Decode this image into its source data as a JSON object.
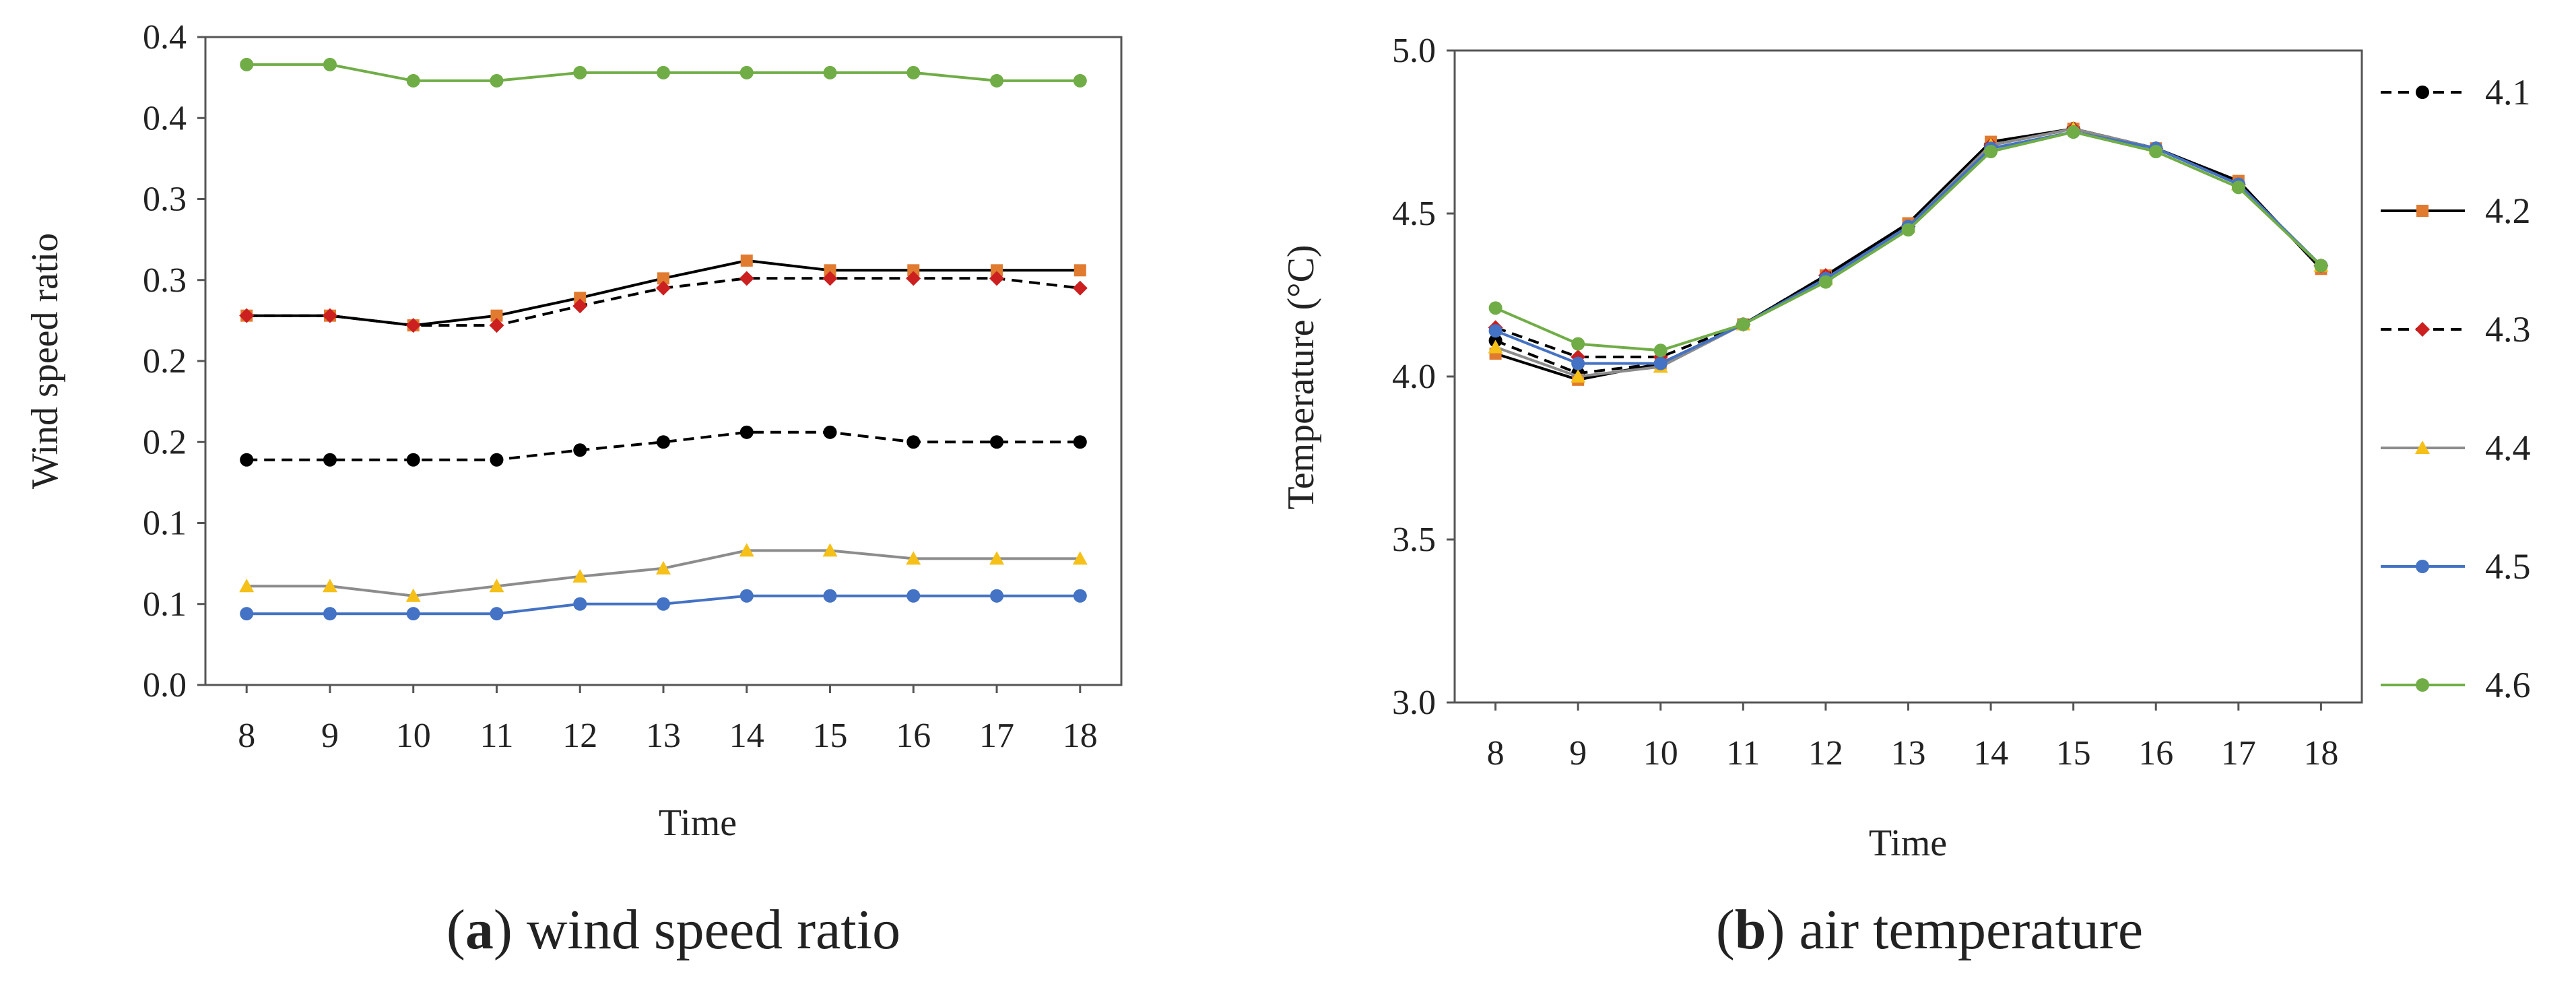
{
  "chart_data": [
    {
      "type": "line",
      "panel_id": "a",
      "caption_letter": "a",
      "caption_text": "wind speed ratio",
      "xlabel": "Time",
      "ylabel": "Wind speed ratio",
      "x": [
        8,
        9,
        10,
        11,
        12,
        13,
        14,
        15,
        16,
        17,
        18
      ],
      "x_tick_labels": [
        "8",
        "9",
        "10",
        "11",
        "12",
        "13",
        "14",
        "15",
        "16",
        "17",
        "18"
      ],
      "ylim": [
        0,
        0.4
      ],
      "y_ticks": [
        0,
        0.05,
        0.1,
        0.15,
        0.2,
        0.25,
        0.3,
        0.35,
        0.4
      ],
      "y_tick_labels": [
        "0.0",
        "0.1",
        "0.1",
        "0.2",
        "0.2",
        "0.3",
        "0.3",
        "0.4",
        "0.4"
      ],
      "grid": false,
      "series": [
        {
          "name": "4.1",
          "color": "#000000",
          "dash": true,
          "marker": "circle",
          "values": [
            0.139,
            0.139,
            0.139,
            0.139,
            0.145,
            0.15,
            0.156,
            0.156,
            0.15,
            0.15,
            0.15
          ]
        },
        {
          "name": "4.2",
          "color": "#000000",
          "marker_color": "#e07b30",
          "dash": false,
          "marker": "square",
          "values": [
            0.228,
            0.228,
            0.222,
            0.228,
            0.239,
            0.251,
            0.262,
            0.256,
            0.256,
            0.256,
            0.256
          ]
        },
        {
          "name": "4.3",
          "color": "#000000",
          "marker_color": "#cc1f1f",
          "dash": true,
          "marker": "diamond",
          "values": [
            0.228,
            0.228,
            0.222,
            0.222,
            0.234,
            0.245,
            0.251,
            0.251,
            0.251,
            0.251,
            0.245
          ]
        },
        {
          "name": "4.4",
          "color": "#8c8c8c",
          "marker_color": "#f5c018",
          "dash": false,
          "marker": "triangle",
          "values": [
            0.061,
            0.061,
            0.055,
            0.061,
            0.067,
            0.072,
            0.083,
            0.083,
            0.078,
            0.078,
            0.078
          ]
        },
        {
          "name": "4.5",
          "color": "#4472c4",
          "dash": false,
          "marker": "circle",
          "values": [
            0.044,
            0.044,
            0.044,
            0.044,
            0.05,
            0.05,
            0.055,
            0.055,
            0.055,
            0.055,
            0.055
          ]
        },
        {
          "name": "4.6",
          "color": "#70ad47",
          "dash": false,
          "marker": "circle",
          "values": [
            0.383,
            0.383,
            0.373,
            0.373,
            0.378,
            0.378,
            0.378,
            0.378,
            0.378,
            0.373,
            0.373
          ]
        }
      ]
    },
    {
      "type": "line",
      "panel_id": "b",
      "caption_letter": "b",
      "caption_text": "air temperature",
      "xlabel": "Time",
      "ylabel": "Temperature (°C)",
      "x": [
        8,
        9,
        10,
        11,
        12,
        13,
        14,
        15,
        16,
        17,
        18
      ],
      "x_tick_labels": [
        "8",
        "9",
        "10",
        "11",
        "12",
        "13",
        "14",
        "15",
        "16",
        "17",
        "18"
      ],
      "ylim": [
        3.0,
        5.0
      ],
      "y_ticks": [
        3.0,
        3.5,
        4.0,
        4.5,
        5.0
      ],
      "y_tick_labels": [
        "3.0",
        "3.5",
        "4.0",
        "4.5",
        "5.0"
      ],
      "grid": false,
      "legend": "right",
      "series": [
        {
          "name": "4.1",
          "color": "#000000",
          "dash": true,
          "marker": "circle",
          "values": [
            4.11,
            4.01,
            4.04,
            4.16,
            4.3,
            4.46,
            4.71,
            4.76,
            4.7,
            4.59,
            4.34
          ]
        },
        {
          "name": "4.2",
          "color": "#000000",
          "marker_color": "#e07b30",
          "dash": false,
          "marker": "square",
          "values": [
            4.07,
            3.99,
            4.04,
            4.16,
            4.31,
            4.47,
            4.72,
            4.76,
            4.7,
            4.6,
            4.33
          ]
        },
        {
          "name": "4.3",
          "color": "#000000",
          "marker_color": "#cc1f1f",
          "dash": true,
          "marker": "diamond",
          "values": [
            4.15,
            4.06,
            4.06,
            4.16,
            4.31,
            4.46,
            4.71,
            4.76,
            4.7,
            4.59,
            4.34
          ]
        },
        {
          "name": "4.4",
          "color": "#8c8c8c",
          "marker_color": "#f5c018",
          "dash": false,
          "marker": "triangle",
          "values": [
            4.09,
            4.0,
            4.03,
            4.16,
            4.3,
            4.46,
            4.71,
            4.76,
            4.7,
            4.59,
            4.34
          ]
        },
        {
          "name": "4.5",
          "color": "#4472c4",
          "dash": false,
          "marker": "circle",
          "values": [
            4.14,
            4.04,
            4.04,
            4.16,
            4.3,
            4.46,
            4.7,
            4.75,
            4.7,
            4.59,
            4.34
          ]
        },
        {
          "name": "4.6",
          "color": "#70ad47",
          "dash": false,
          "marker": "circle",
          "values": [
            4.21,
            4.1,
            4.08,
            4.16,
            4.29,
            4.45,
            4.69,
            4.75,
            4.69,
            4.58,
            4.34
          ]
        }
      ]
    }
  ]
}
